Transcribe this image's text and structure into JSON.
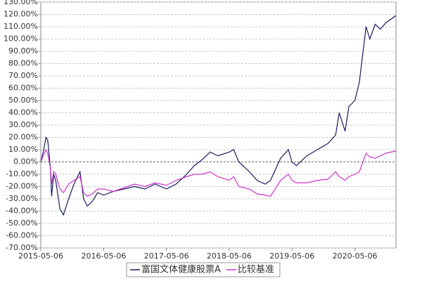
{
  "chart_data": {
    "type": "line",
    "x": [
      "2015-05-06",
      "2015-05-20",
      "2015-06-05",
      "2015-06-15",
      "2015-07-01",
      "2015-07-08",
      "2015-07-20",
      "2015-08-01",
      "2015-08-25",
      "2015-09-15",
      "2015-10-15",
      "2015-11-15",
      "2015-12-20",
      "2016-01-10",
      "2016-02-01",
      "2016-03-01",
      "2016-04-01",
      "2016-05-06",
      "2016-07-01",
      "2016-09-01",
      "2016-11-01",
      "2017-01-01",
      "2017-03-01",
      "2017-05-06",
      "2017-07-01",
      "2017-09-01",
      "2017-10-15",
      "2017-12-01",
      "2018-01-15",
      "2018-03-01",
      "2018-05-06",
      "2018-06-01",
      "2018-07-01",
      "2018-09-01",
      "2018-10-15",
      "2018-12-01",
      "2019-01-01",
      "2019-03-01",
      "2019-04-15",
      "2019-05-06",
      "2019-06-01",
      "2019-08-01",
      "2019-10-01",
      "2019-12-01",
      "2020-01-15",
      "2020-02-05",
      "2020-03-10",
      "2020-04-01",
      "2020-05-06",
      "2020-06-01",
      "2020-07-10",
      "2020-08-01",
      "2020-09-01",
      "2020-10-01",
      "2020-11-01",
      "2020-12-31"
    ],
    "series": [
      {
        "name": "富国文体健康股票A",
        "color": "#1a1a5e",
        "values": [
          0,
          8,
          20,
          18,
          -5,
          -28,
          -10,
          -15,
          -38,
          -43,
          -30,
          -18,
          -8,
          -30,
          -36,
          -32,
          -25,
          -27,
          -24,
          -22,
          -20,
          -22,
          -18,
          -22,
          -18,
          -10,
          -3,
          2,
          8,
          5,
          8,
          10,
          0,
          -8,
          -15,
          -18,
          -15,
          3,
          10,
          0,
          -3,
          5,
          10,
          15,
          22,
          40,
          25,
          45,
          50,
          65,
          110,
          100,
          112,
          108,
          113,
          119
        ]
      },
      {
        "name": "比较基准",
        "color": "#cc33cc",
        "values": [
          0,
          5,
          10,
          7,
          -5,
          -18,
          -8,
          -10,
          -22,
          -25,
          -18,
          -15,
          -12,
          -25,
          -28,
          -26,
          -22,
          -22,
          -24,
          -21,
          -18,
          -20,
          -17,
          -19,
          -15,
          -12,
          -10,
          -10,
          -8,
          -12,
          -15,
          -12,
          -20,
          -22,
          -26,
          -27,
          -28,
          -15,
          -10,
          -15,
          -17,
          -17,
          -15,
          -14,
          -8,
          -12,
          -15,
          -12,
          -10,
          -8,
          7,
          4,
          3,
          5,
          7,
          9
        ]
      }
    ],
    "xlim": [
      "2015-05-06",
      "2020-12-31"
    ],
    "xticks": [
      "2015-05-06",
      "2016-05-06",
      "2017-05-06",
      "2018-05-06",
      "2019-05-06",
      "2020-05-06"
    ],
    "ylim": [
      -70,
      130
    ],
    "yticks": [
      {
        "value": -70,
        "label": "-70.00%"
      },
      {
        "value": -60,
        "label": "-60.00%"
      },
      {
        "value": -50,
        "label": "-50.00%"
      },
      {
        "value": -40,
        "label": "-40.00%"
      },
      {
        "value": -30,
        "label": "-30.00%"
      },
      {
        "value": -20,
        "label": "-20.00%"
      },
      {
        "value": -10,
        "label": "-10.00%"
      },
      {
        "value": 0,
        "label": "0.00%"
      },
      {
        "value": 10,
        "label": "10.00%"
      },
      {
        "value": 20,
        "label": "20.00%"
      },
      {
        "value": 30,
        "label": "30.00%"
      },
      {
        "value": 40,
        "label": "40.00%"
      },
      {
        "value": 50,
        "label": "50.00%"
      },
      {
        "value": 60,
        "label": "60.00%"
      },
      {
        "value": 70,
        "label": "70.00%"
      },
      {
        "value": 80,
        "label": "80.00%"
      },
      {
        "value": 90,
        "label": "90.00%"
      },
      {
        "value": 100,
        "label": "100.00%"
      },
      {
        "value": 110,
        "label": "110.00%"
      },
      {
        "value": 120,
        "label": "120.00%"
      },
      {
        "value": 130,
        "label": "130.00%"
      }
    ],
    "grid": true
  }
}
